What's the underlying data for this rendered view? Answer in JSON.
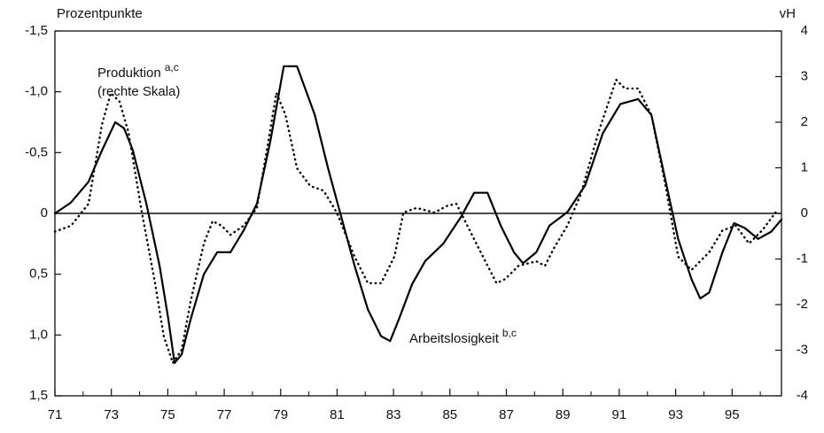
{
  "chart_data": {
    "type": "line",
    "ylabel": "Prozentpunkte",
    "y2label": "vH",
    "xlim": [
      71,
      96.75
    ],
    "xticks": [
      71,
      73,
      75,
      77,
      79,
      81,
      83,
      85,
      87,
      89,
      91,
      93,
      95
    ],
    "xminorticks": [
      72,
      74,
      76,
      78,
      80,
      82,
      84,
      86,
      88,
      90,
      92,
      94,
      96
    ],
    "ylim": [
      1.5,
      -1.5
    ],
    "yticks": [
      {
        "value": -1.5,
        "label": "-1,5"
      },
      {
        "value": -1.0,
        "label": "-1,0"
      },
      {
        "value": -0.5,
        "label": "-0,5"
      },
      0,
      {
        "value": 0.5,
        "label": "0,5"
      },
      {
        "value": 1.0,
        "label": "1,0"
      },
      {
        "value": 1.5,
        "label": "1,5"
      }
    ],
    "y2lim": [
      -4,
      4
    ],
    "y2ticks": [
      4,
      3,
      2,
      1,
      0,
      -1,
      -2,
      -3,
      -4
    ],
    "zero_line": true,
    "series": [
      {
        "name": "Arbeitslosigkeit",
        "note": "b,c",
        "color": "#000000",
        "style": "solid",
        "x": [
          71.0,
          71.57,
          72.19,
          72.67,
          73.14,
          73.45,
          73.76,
          74.24,
          74.71,
          75.02,
          75.24,
          75.49,
          75.81,
          76.28,
          76.75,
          77.22,
          77.69,
          78.16,
          78.63,
          79.11,
          79.58,
          80.21,
          80.68,
          81.15,
          81.62,
          82.09,
          82.56,
          82.88,
          83.19,
          83.66,
          84.13,
          84.76,
          85.39,
          85.86,
          86.33,
          86.8,
          87.27,
          87.59,
          88.06,
          88.53,
          89.16,
          89.79,
          90.42,
          91.04,
          91.67,
          92.14,
          92.61,
          93.09,
          93.56,
          93.87,
          94.19,
          94.66,
          95.07,
          95.45,
          95.92,
          96.39,
          96.75
        ],
        "values": [
          0,
          -0.09,
          -0.26,
          -0.52,
          -0.75,
          -0.7,
          -0.52,
          -0.08,
          0.43,
          0.87,
          1.23,
          1.16,
          0.87,
          0.5,
          0.32,
          0.32,
          0.14,
          -0.08,
          -0.59,
          -1.21,
          -1.21,
          -0.81,
          -0.37,
          0.03,
          0.43,
          0.79,
          1.01,
          1.05,
          0.87,
          0.58,
          0.39,
          0.25,
          0.03,
          -0.17,
          -0.17,
          0.1,
          0.32,
          0.41,
          0.32,
          0.1,
          -0.01,
          -0.23,
          -0.66,
          -0.9,
          -0.94,
          -0.81,
          -0.3,
          0.21,
          0.54,
          0.7,
          0.65,
          0.32,
          0.08,
          0.12,
          0.21,
          0.15,
          0.05
        ]
      },
      {
        "name": "Produktion",
        "note": "a,c",
        "axis_note": "(rechte Skala)",
        "color": "#000000",
        "style": "dotted",
        "axis": "y2",
        "x": [
          71.0,
          71.57,
          72.19,
          72.67,
          72.98,
          73.29,
          73.61,
          74.08,
          74.55,
          74.86,
          75.18,
          75.49,
          75.81,
          76.28,
          76.59,
          76.91,
          77.22,
          77.69,
          78.16,
          78.48,
          78.85,
          79.17,
          79.58,
          80.05,
          80.52,
          80.99,
          81.62,
          82.09,
          82.56,
          83.03,
          83.35,
          83.82,
          84.45,
          84.92,
          85.23,
          85.7,
          86.17,
          86.65,
          86.96,
          87.43,
          88.06,
          88.37,
          88.69,
          89.16,
          89.63,
          90.26,
          90.89,
          91.2,
          91.67,
          92.14,
          92.61,
          93.09,
          93.56,
          94.19,
          94.66,
          95.13,
          95.6,
          96.07,
          96.54
        ],
        "values": [
          -0.4,
          -0.27,
          0.21,
          1.96,
          2.64,
          2.45,
          1.77,
          0.02,
          -1.53,
          -2.7,
          -3.28,
          -2.99,
          -1.92,
          -0.66,
          -0.17,
          -0.27,
          -0.47,
          -0.27,
          0.12,
          1.28,
          2.64,
          2.16,
          0.99,
          0.6,
          0.5,
          0.02,
          -0.95,
          -1.53,
          -1.53,
          -0.95,
          0.02,
          0.12,
          0.02,
          0.17,
          0.21,
          -0.37,
          -0.95,
          -1.53,
          -1.44,
          -1.15,
          -1.05,
          -1.15,
          -0.76,
          -0.27,
          0.41,
          1.77,
          2.93,
          2.74,
          2.74,
          2.16,
          0.7,
          -0.95,
          -1.24,
          -0.85,
          -0.37,
          -0.27,
          -0.66,
          -0.37,
          0.02
        ]
      }
    ]
  }
}
